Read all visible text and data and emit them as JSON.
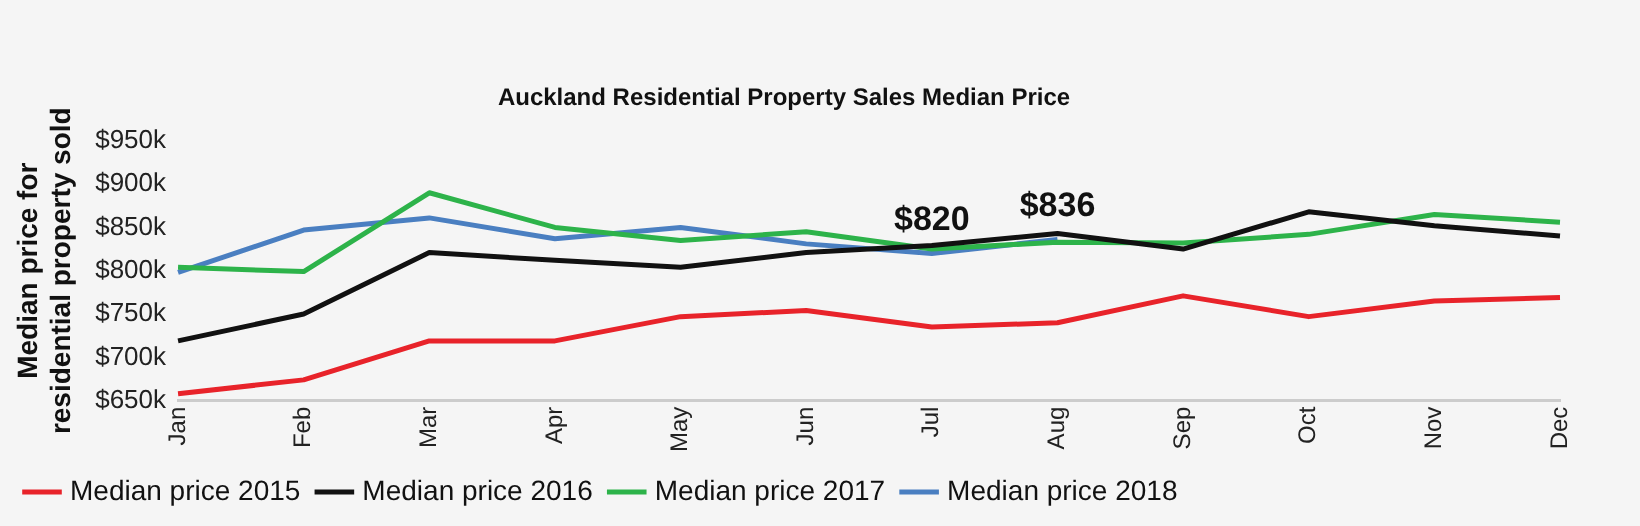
{
  "chart_data": {
    "type": "line",
    "title": "Auckland Residential Property Sales Median Price",
    "ylabel": "Median price for\nresidential property sold",
    "categories": [
      "Jan",
      "Feb",
      "Mar",
      "Apr",
      "May",
      "Jun",
      "Jul",
      "Aug",
      "Sep",
      "Oct",
      "Nov",
      "Dec"
    ],
    "series": [
      {
        "name": "Median price 2015",
        "color": "#e8232a",
        "values": [
          658,
          674,
          719,
          719,
          747,
          754,
          735,
          740,
          771,
          747,
          765,
          769
        ]
      },
      {
        "name": "Median price 2016",
        "color": "#111111",
        "values": [
          719,
          750,
          821,
          812,
          804,
          821,
          829,
          843,
          825,
          868,
          852,
          840
        ]
      },
      {
        "name": "Median price 2017",
        "color": "#2db34a",
        "values": [
          804,
          799,
          890,
          850,
          835,
          845,
          825,
          833,
          832,
          842,
          865,
          856
        ]
      },
      {
        "name": "Median price 2018",
        "color": "#4a7fc1",
        "values": [
          798,
          847,
          861,
          837,
          850,
          831,
          820,
          836,
          null,
          null,
          null,
          null
        ]
      }
    ],
    "ylim": [
      650,
      950
    ],
    "yticks": [
      {
        "value": 650,
        "label": "$650k"
      },
      {
        "value": 700,
        "label": "$700k"
      },
      {
        "value": 750,
        "label": "$750k"
      },
      {
        "value": 800,
        "label": "$800k"
      },
      {
        "value": 850,
        "label": "$850k"
      },
      {
        "value": 900,
        "label": "$900k"
      },
      {
        "value": 950,
        "label": "$950k"
      }
    ],
    "annotations": [
      {
        "text": "$820",
        "x": "Jul",
        "y": 820
      },
      {
        "text": "$836",
        "x": "Aug",
        "y": 836
      }
    ],
    "legend": "bottom",
    "grid": false,
    "marker": "none",
    "line_style": "solid"
  }
}
